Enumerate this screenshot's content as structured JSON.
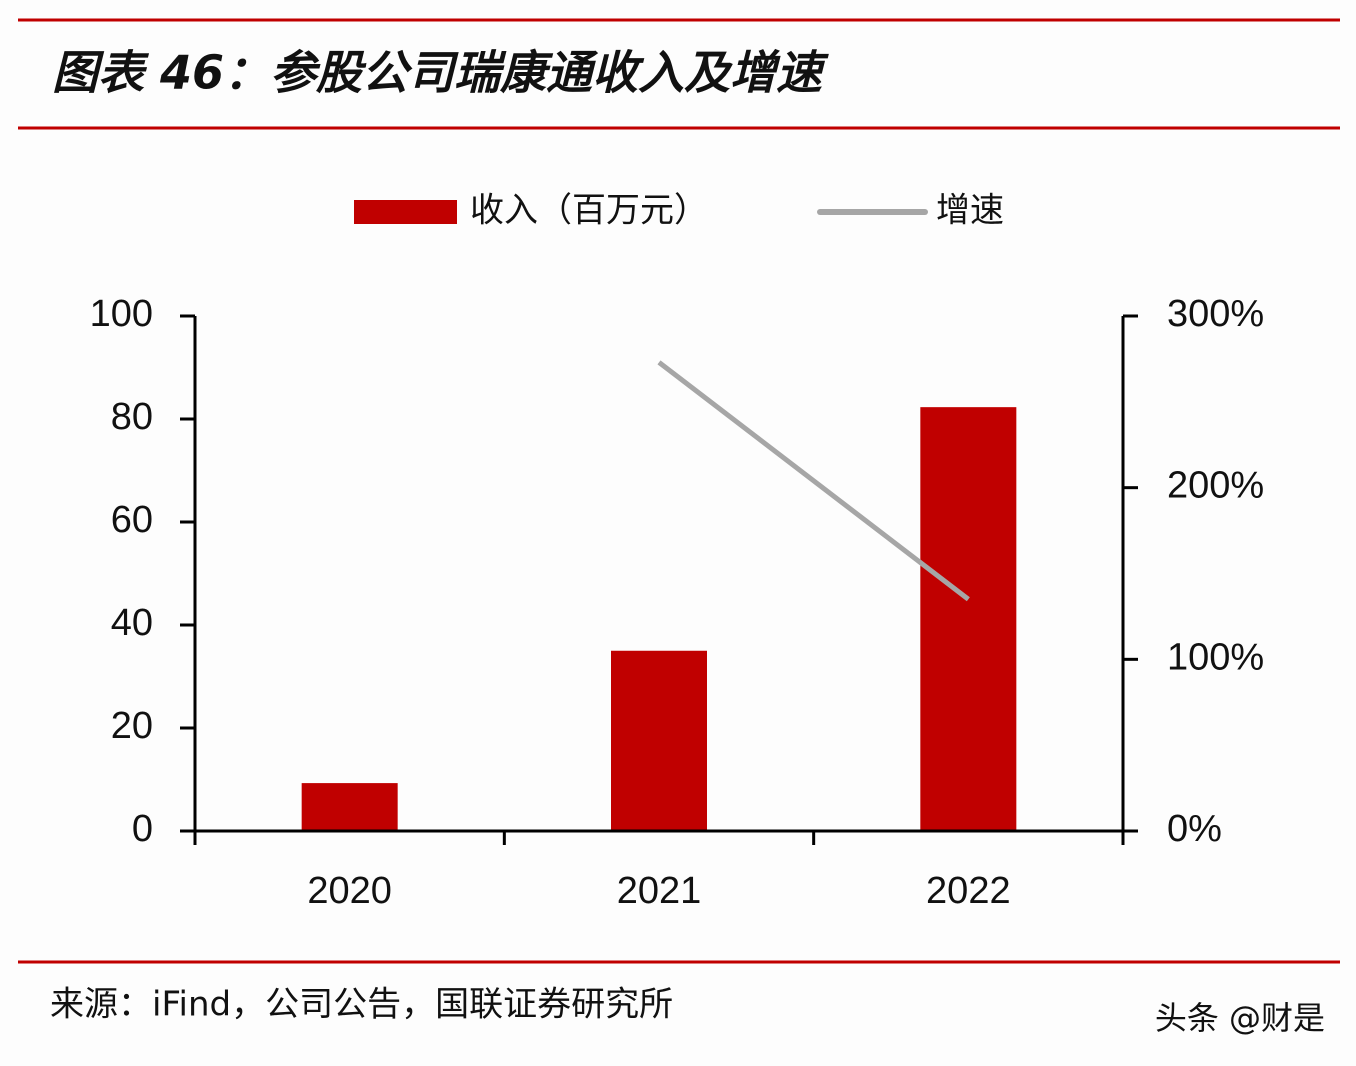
{
  "chart_data": {
    "type": "bar",
    "title": "图表 46：参股公司瑞康通收入及增速",
    "categories": [
      "2020",
      "2021",
      "2022"
    ],
    "series": [
      {
        "name": "收入（百万元）",
        "type": "bar",
        "color": "#c00000",
        "values": [
          9.3,
          35.0,
          82.3
        ]
      },
      {
        "name": "增速",
        "type": "line",
        "color": "#a6a6a6",
        "axis": "y2",
        "values": [
          null,
          273,
          135
        ]
      }
    ],
    "ylim": [
      0,
      100
    ],
    "yticks": [
      0,
      20,
      40,
      60,
      80,
      100
    ],
    "y2lim": [
      0,
      300
    ],
    "y2ticks": [
      {
        "value": 0,
        "label": "0%"
      },
      {
        "value": 100,
        "label": "100%"
      },
      {
        "value": 200,
        "label": "200%"
      },
      {
        "value": 300,
        "label": "300%"
      }
    ],
    "source": "来源：iFind，公司公告，国联证券研究所"
  },
  "watermark": "头条 @财是"
}
